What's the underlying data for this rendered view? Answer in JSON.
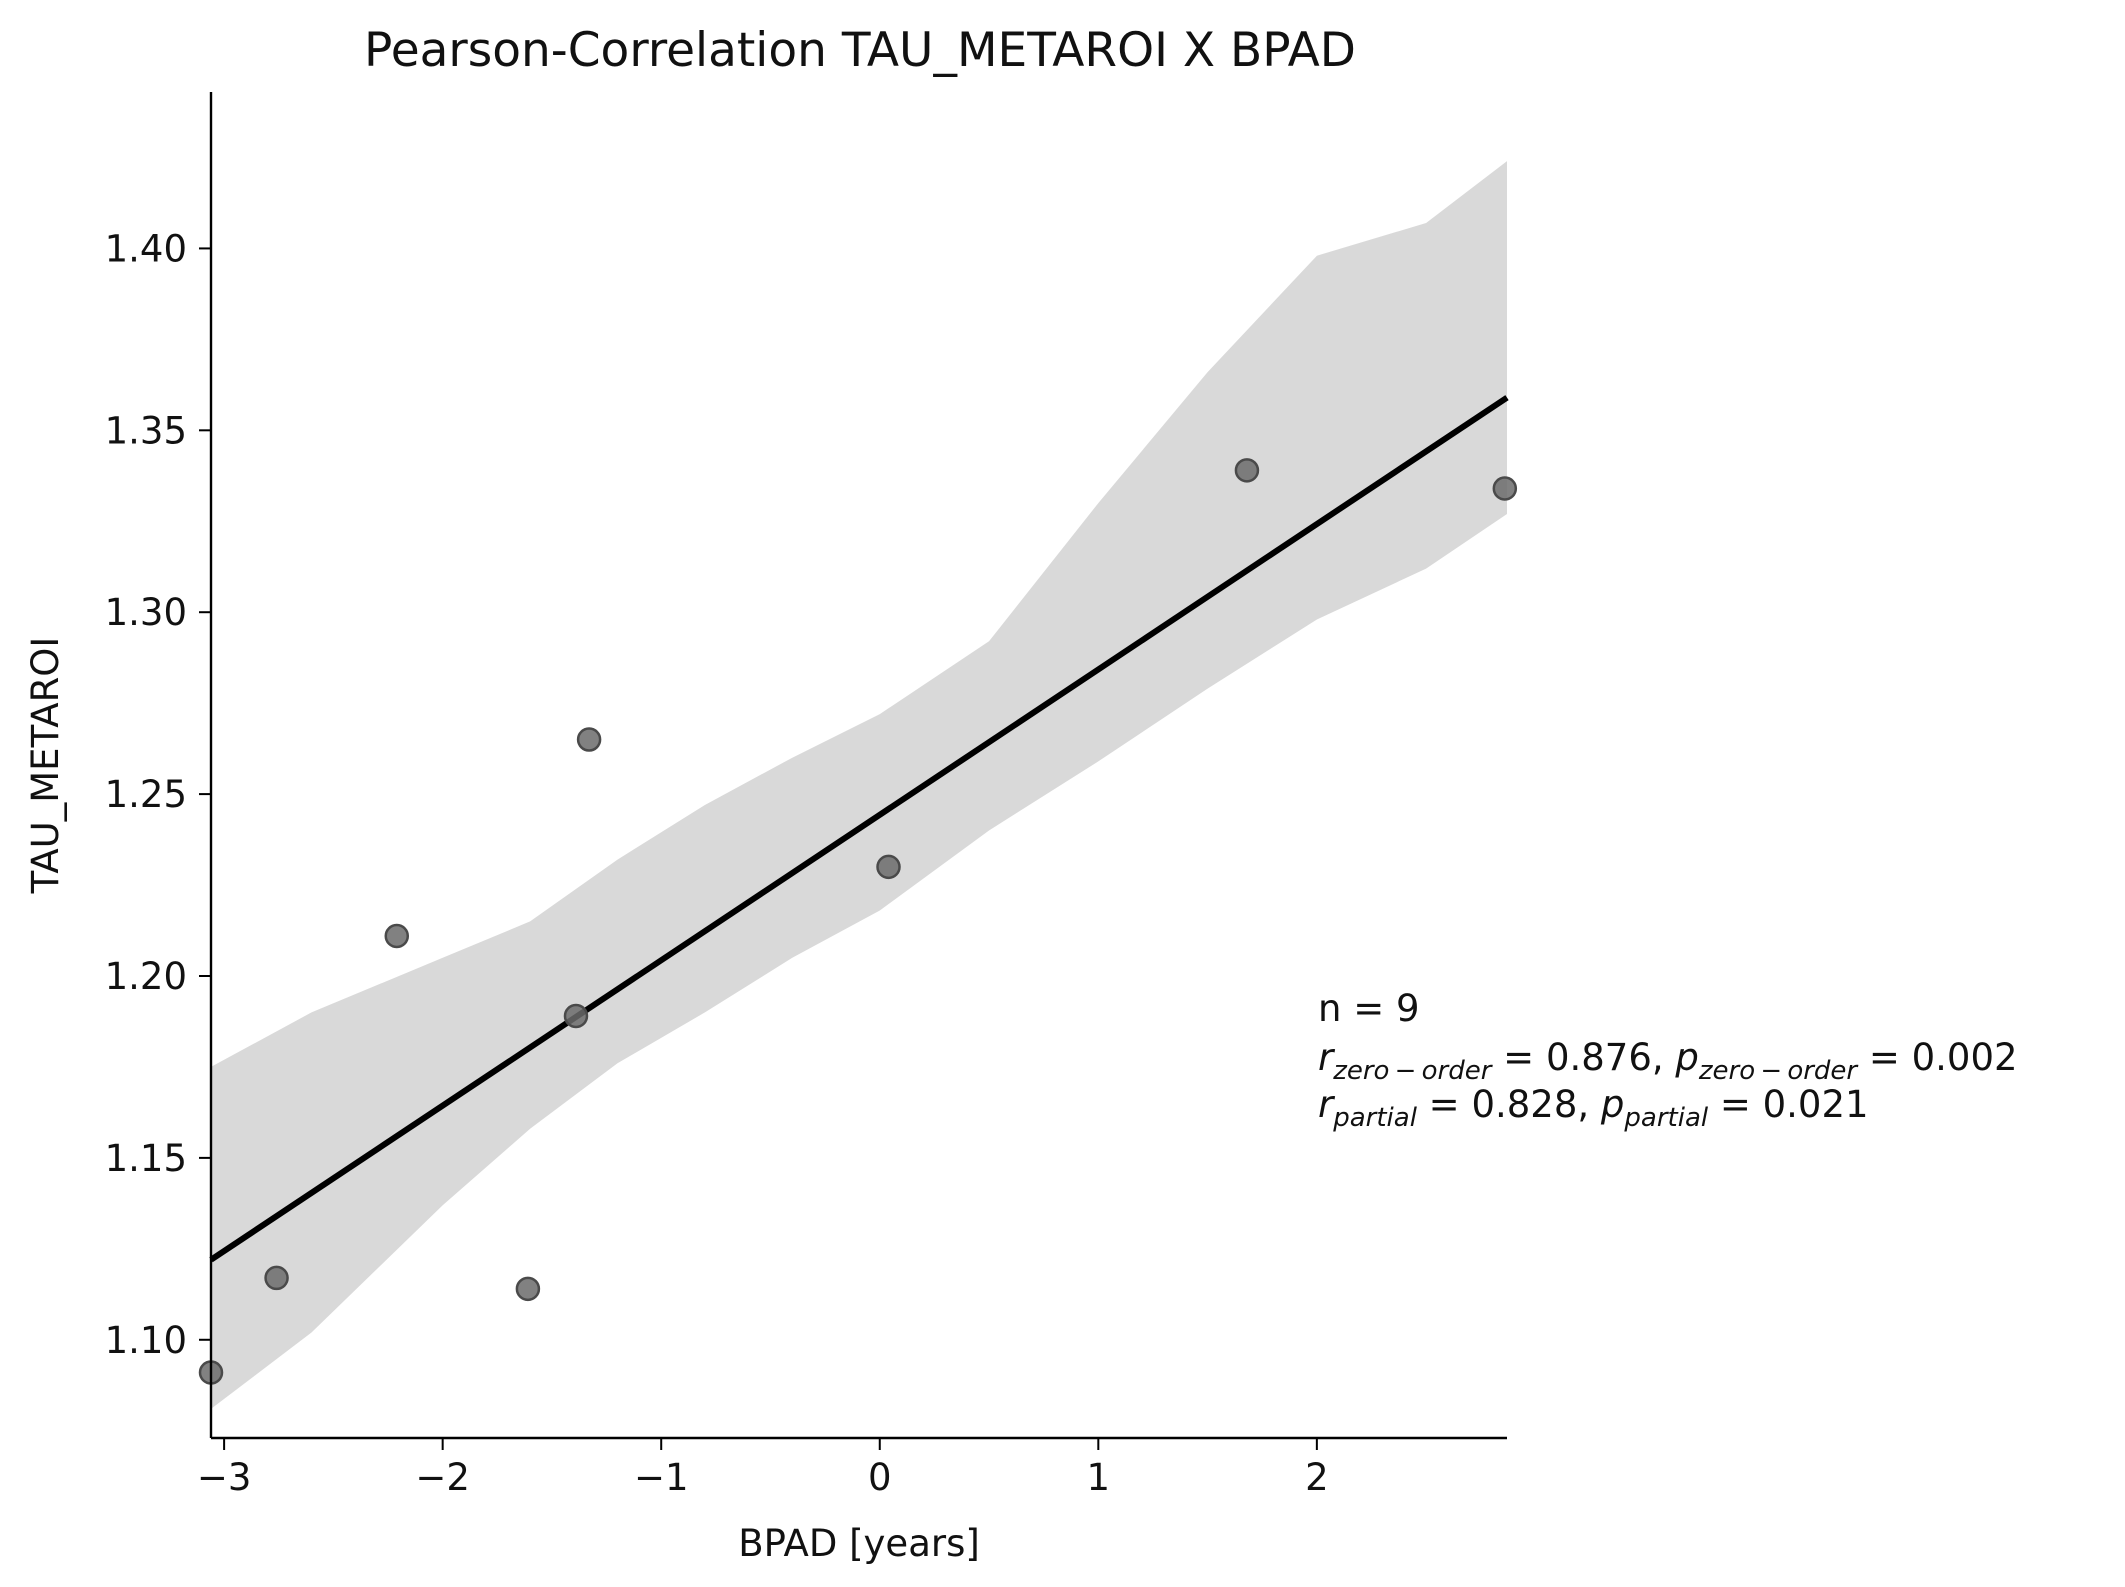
{
  "chart_data": {
    "type": "scatter",
    "title": "Pearson-Correlation TAU_METAROI X BPAD",
    "xlabel": "BPAD [years]",
    "ylabel": "TAU_METAROI",
    "xlim": [
      -3.06,
      2.87
    ],
    "ylim": [
      1.073,
      1.443
    ],
    "xticks": [
      -3,
      -2,
      -1,
      0,
      1,
      2
    ],
    "xtick_labels": [
      "−3",
      "−2",
      "−1",
      "0",
      "1",
      "2"
    ],
    "yticks": [
      1.1,
      1.15,
      1.2,
      1.25,
      1.3,
      1.35,
      1.4
    ],
    "ytick_labels": [
      "1.10",
      "1.15",
      "1.20",
      "1.25",
      "1.30",
      "1.35",
      "1.40"
    ],
    "grid": false,
    "points": [
      {
        "x": -3.06,
        "y": 1.091
      },
      {
        "x": -2.76,
        "y": 1.117
      },
      {
        "x": -2.21,
        "y": 1.211
      },
      {
        "x": -1.61,
        "y": 1.114
      },
      {
        "x": -1.39,
        "y": 1.189
      },
      {
        "x": -1.33,
        "y": 1.265
      },
      {
        "x": 0.04,
        "y": 1.23
      },
      {
        "x": 1.68,
        "y": 1.339
      },
      {
        "x": 2.86,
        "y": 1.334
      }
    ],
    "regression_line": {
      "x": [
        -3.06,
        2.87
      ],
      "y": [
        1.122,
        1.359
      ]
    },
    "confidence_band": {
      "x": [
        -3.06,
        -2.6,
        -2.0,
        -1.6,
        -1.2,
        -0.8,
        -0.4,
        0.0,
        0.5,
        1.0,
        1.5,
        2.0,
        2.5,
        2.87
      ],
      "upper": [
        1.175,
        1.19,
        1.205,
        1.215,
        1.232,
        1.247,
        1.26,
        1.272,
        1.292,
        1.33,
        1.366,
        1.398,
        1.407,
        1.424
      ],
      "lower": [
        1.081,
        1.102,
        1.137,
        1.158,
        1.176,
        1.19,
        1.205,
        1.218,
        1.24,
        1.259,
        1.279,
        1.298,
        1.312,
        1.327
      ]
    },
    "colors": {
      "points": "#6b6b6b",
      "point_edge": "#4a4a4a",
      "line": "#000000",
      "band": "#d9d9d9"
    }
  },
  "annotation": {
    "n": "n = 9",
    "r_zero_order_sub": "zero − order",
    "r_zero_order_value": " = 0.876, ",
    "p_zero_order_sub": "zero − order",
    "p_zero_order_value": " = 0.002",
    "r_partial_sub": "partial",
    "r_partial_value": " = 0.828, ",
    "p_partial_sub": "partial",
    "p_partial_value": " = 0.021",
    "r_symbol": "r",
    "p_symbol": "p"
  }
}
